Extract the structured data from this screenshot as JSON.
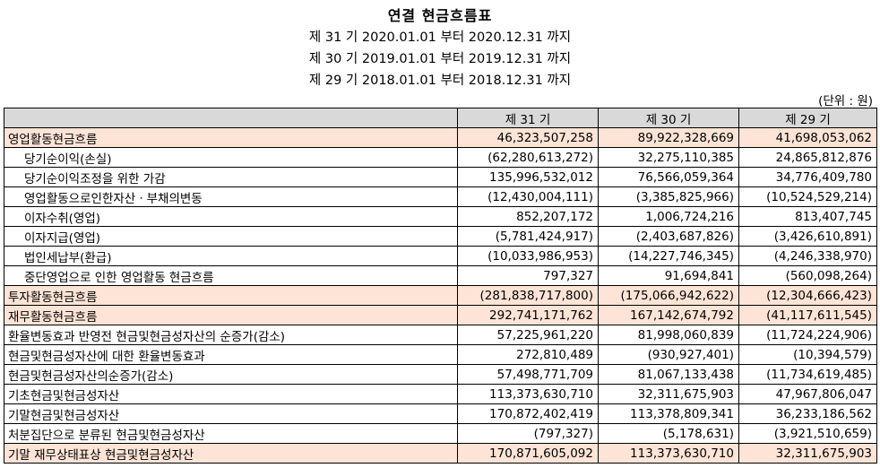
{
  "header": {
    "title": "연결 현금흐름표",
    "periods": [
      "제 31 기 2020.01.01 부터 2020.12.31 까지",
      "제 30 기 2019.01.01 부터 2019.12.31 까지",
      "제 29 기 2018.01.01 부터 2018.12.31 까지"
    ],
    "unit": "(단위 : 원)"
  },
  "table": {
    "columns": [
      "",
      "제 31 기",
      "제 30 기",
      "제 29 기"
    ],
    "rows": [
      {
        "label": "영업활동현금흐름",
        "indent": false,
        "highlight": true,
        "values": [
          "46,323,507,258",
          "89,922,328,669",
          "41,698,053,062"
        ]
      },
      {
        "label": "당기순이익(손실)",
        "indent": true,
        "highlight": false,
        "values": [
          "(62,280,613,272)",
          "32,275,110,385",
          "24,865,812,876"
        ]
      },
      {
        "label": "당기순이익조정을 위한 가감",
        "indent": true,
        "highlight": false,
        "values": [
          "135,996,532,012",
          "76,566,059,364",
          "34,776,409,780"
        ]
      },
      {
        "label": "영업활동으로인한자산ㆍ부채의변동",
        "indent": true,
        "highlight": false,
        "values": [
          "(12,430,004,111)",
          "(3,385,825,966)",
          "(10,524,529,214)"
        ]
      },
      {
        "label": "이자수취(영업)",
        "indent": true,
        "highlight": false,
        "values": [
          "852,207,172",
          "1,006,724,216",
          "813,407,745"
        ]
      },
      {
        "label": "이자지급(영업)",
        "indent": true,
        "highlight": false,
        "values": [
          "(5,781,424,917)",
          "(2,403,687,826)",
          "(3,426,610,891)"
        ]
      },
      {
        "label": "법인세납부(환급)",
        "indent": true,
        "highlight": false,
        "values": [
          "(10,033,986,953)",
          "(14,227,746,345)",
          "(4,246,338,970)"
        ]
      },
      {
        "label": "중단영업으로 인한 영업활동 현금흐름",
        "indent": true,
        "highlight": false,
        "values": [
          "797,327",
          "91,694,841",
          "(560,098,264)"
        ]
      },
      {
        "label": "투자활동현금흐름",
        "indent": false,
        "highlight": true,
        "values": [
          "(281,838,717,800)",
          "(175,066,942,622)",
          "(12,304,666,423)"
        ]
      },
      {
        "label": "재무활동현금흐름",
        "indent": false,
        "highlight": true,
        "values": [
          "292,741,171,762",
          "167,142,674,792",
          "(41,117,611,545)"
        ]
      },
      {
        "label": "환율변동효과 반영전 현금및현금성자산의 순증가(감소)",
        "indent": false,
        "highlight": false,
        "values": [
          "57,225,961,220",
          "81,998,060,839",
          "(11,724,224,906)"
        ]
      },
      {
        "label": "현금및현금성자산에 대한 환율변동효과",
        "indent": false,
        "highlight": false,
        "values": [
          "272,810,489",
          "(930,927,401)",
          "(10,394,579)"
        ]
      },
      {
        "label": "현금및현금성자산의순증가(감소)",
        "indent": false,
        "highlight": false,
        "values": [
          "57,498,771,709",
          "81,067,133,438",
          "(11,734,619,485)"
        ]
      },
      {
        "label": "기초현금및현금성자산",
        "indent": false,
        "highlight": false,
        "values": [
          "113,373,630,710",
          "32,311,675,903",
          "47,967,806,047"
        ]
      },
      {
        "label": "기말현금및현금성자산",
        "indent": false,
        "highlight": false,
        "values": [
          "170,872,402,419",
          "113,378,809,341",
          "36,233,186,562"
        ]
      },
      {
        "label": "처분집단으로 분류된 현금및현금성자산",
        "indent": false,
        "highlight": false,
        "values": [
          "(797,327)",
          "(5,178,631)",
          "(3,921,510,659)"
        ]
      },
      {
        "label": "기말 재무상태표상 현금및현금성자산",
        "indent": false,
        "highlight": true,
        "values": [
          "170,871,605,092",
          "113,373,630,710",
          "32,311,675,903"
        ]
      }
    ]
  }
}
